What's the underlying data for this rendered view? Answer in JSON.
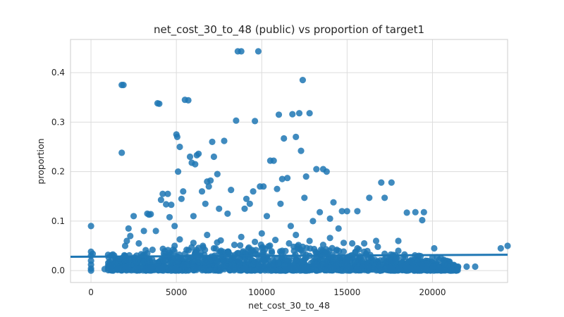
{
  "chart_data": {
    "type": "scatter",
    "title": "net_cost_30_to_48 (public) vs proportion of target1",
    "xlabel": "net_cost_30_to_48",
    "ylabel": "proportion",
    "xlim": [
      -1200,
      24400
    ],
    "ylim": [
      -0.024,
      0.467
    ],
    "x_ticks": [
      0,
      5000,
      10000,
      15000,
      20000
    ],
    "y_ticks": [
      0.0,
      0.1,
      0.2,
      0.3,
      0.4
    ],
    "x_tick_labels": [
      "0",
      "5000",
      "10000",
      "15000",
      "20000"
    ],
    "y_tick_labels": [
      "0.0",
      "0.1",
      "0.2",
      "0.3",
      "0.4"
    ],
    "grid": true,
    "colors": {
      "point": "#1f77b4",
      "grid": "#dcdcdc",
      "frame": "#cccccc",
      "text": "#262626"
    },
    "regression_line": {
      "x": [
        -1200,
        24400
      ],
      "y": [
        0.028,
        0.032
      ]
    },
    "series": [
      {
        "points": [
          [
            0,
            0.09
          ],
          [
            0,
            0.038
          ],
          [
            0,
            0.03
          ],
          [
            0,
            0.02
          ],
          [
            0,
            0.012
          ],
          [
            0,
            0.004
          ],
          [
            0,
            0.0
          ],
          [
            100,
            0.034
          ],
          [
            800,
            0.003
          ],
          [
            1000,
            0.032
          ],
          [
            1100,
            0.005
          ],
          [
            1500,
            0.02
          ],
          [
            1800,
            0.375
          ],
          [
            1900,
            0.375
          ],
          [
            1800,
            0.238
          ],
          [
            2000,
            0.05
          ],
          [
            2100,
            0.06
          ],
          [
            2200,
            0.085
          ],
          [
            2300,
            0.07
          ],
          [
            2500,
            0.11
          ],
          [
            2800,
            0.055
          ],
          [
            3100,
            0.08
          ],
          [
            3300,
            0.115
          ],
          [
            3400,
            0.113
          ],
          [
            3500,
            0.114
          ],
          [
            3800,
            0.08
          ],
          [
            3900,
            0.338
          ],
          [
            4000,
            0.337
          ],
          [
            4100,
            0.143
          ],
          [
            4200,
            0.155
          ],
          [
            4400,
            0.134
          ],
          [
            4500,
            0.155
          ],
          [
            4600,
            0.108
          ],
          [
            4700,
            0.133
          ],
          [
            4900,
            0.09
          ],
          [
            5000,
            0.275
          ],
          [
            5050,
            0.27
          ],
          [
            5100,
            0.2
          ],
          [
            5200,
            0.25
          ],
          [
            5300,
            0.145
          ],
          [
            5400,
            0.16
          ],
          [
            5500,
            0.345
          ],
          [
            5700,
            0.344
          ],
          [
            5800,
            0.23
          ],
          [
            5900,
            0.218
          ],
          [
            6000,
            0.11
          ],
          [
            6100,
            0.215
          ],
          [
            6200,
            0.233
          ],
          [
            6300,
            0.236
          ],
          [
            6500,
            0.16
          ],
          [
            6700,
            0.135
          ],
          [
            6800,
            0.18
          ],
          [
            6900,
            0.17
          ],
          [
            7000,
            0.182
          ],
          [
            7100,
            0.26
          ],
          [
            7200,
            0.23
          ],
          [
            7400,
            0.195
          ],
          [
            7500,
            0.125
          ],
          [
            7800,
            0.262
          ],
          [
            8000,
            0.115
          ],
          [
            8200,
            0.163
          ],
          [
            8500,
            0.303
          ],
          [
            8600,
            0.443
          ],
          [
            8800,
            0.443
          ],
          [
            9000,
            0.125
          ],
          [
            9100,
            0.145
          ],
          [
            9300,
            0.135
          ],
          [
            9500,
            0.16
          ],
          [
            9600,
            0.302
          ],
          [
            9800,
            0.443
          ],
          [
            9900,
            0.17
          ],
          [
            10100,
            0.17
          ],
          [
            10300,
            0.11
          ],
          [
            10500,
            0.222
          ],
          [
            10700,
            0.222
          ],
          [
            10900,
            0.165
          ],
          [
            11000,
            0.315
          ],
          [
            11100,
            0.135
          ],
          [
            11200,
            0.185
          ],
          [
            11300,
            0.267
          ],
          [
            11500,
            0.187
          ],
          [
            11700,
            0.09
          ],
          [
            11800,
            0.316
          ],
          [
            12000,
            0.27
          ],
          [
            12200,
            0.318
          ],
          [
            12300,
            0.242
          ],
          [
            12400,
            0.385
          ],
          [
            12500,
            0.147
          ],
          [
            12600,
            0.19
          ],
          [
            12800,
            0.318
          ],
          [
            13000,
            0.1
          ],
          [
            13200,
            0.205
          ],
          [
            13400,
            0.118
          ],
          [
            13600,
            0.205
          ],
          [
            13800,
            0.2
          ],
          [
            14000,
            0.105
          ],
          [
            14200,
            0.138
          ],
          [
            14500,
            0.085
          ],
          [
            14700,
            0.12
          ],
          [
            15000,
            0.12
          ],
          [
            15300,
            0.055
          ],
          [
            15600,
            0.12
          ],
          [
            16000,
            0.055
          ],
          [
            16300,
            0.147
          ],
          [
            16700,
            0.06
          ],
          [
            17000,
            0.178
          ],
          [
            17200,
            0.147
          ],
          [
            17600,
            0.178
          ],
          [
            18000,
            0.06
          ],
          [
            18500,
            0.117
          ],
          [
            19000,
            0.118
          ],
          [
            19400,
            0.102
          ],
          [
            19500,
            0.118
          ],
          [
            20100,
            0.045
          ],
          [
            20500,
            0.025
          ],
          [
            21000,
            0.018
          ],
          [
            21500,
            0.008
          ],
          [
            22000,
            0.008
          ],
          [
            22500,
            0.008
          ],
          [
            24000,
            0.045
          ],
          [
            24400,
            0.05
          ],
          [
            1200,
            0.012
          ],
          [
            1600,
            0.005
          ],
          [
            2200,
            0.015
          ],
          [
            2600,
            0.022
          ],
          [
            3000,
            0.028
          ],
          [
            3300,
            0.035
          ],
          [
            3600,
            0.042
          ],
          [
            4000,
            0.018
          ],
          [
            4300,
            0.025
          ],
          [
            4600,
            0.036
          ],
          [
            4900,
            0.05
          ],
          [
            5200,
            0.063
          ],
          [
            5600,
            0.042
          ],
          [
            6000,
            0.056
          ],
          [
            6400,
            0.03
          ],
          [
            6800,
            0.072
          ],
          [
            7200,
            0.045
          ],
          [
            7600,
            0.061
          ],
          [
            8000,
            0.038
          ],
          [
            8400,
            0.052
          ],
          [
            8800,
            0.068
          ],
          [
            9200,
            0.044
          ],
          [
            9600,
            0.058
          ],
          [
            10000,
            0.075
          ],
          [
            10400,
            0.049
          ],
          [
            10800,
            0.062
          ],
          [
            11200,
            0.04
          ],
          [
            11600,
            0.055
          ],
          [
            12000,
            0.072
          ],
          [
            12400,
            0.048
          ],
          [
            12800,
            0.06
          ],
          [
            13200,
            0.035
          ],
          [
            13600,
            0.052
          ],
          [
            14000,
            0.066
          ],
          [
            14400,
            0.042
          ],
          [
            14800,
            0.056
          ],
          [
            15200,
            0.03
          ],
          [
            15600,
            0.045
          ],
          [
            16000,
            0.038
          ],
          [
            16400,
            0.026
          ],
          [
            16800,
            0.048
          ],
          [
            17200,
            0.034
          ],
          [
            17600,
            0.022
          ],
          [
            18000,
            0.04
          ],
          [
            18400,
            0.028
          ],
          [
            18800,
            0.016
          ],
          [
            19200,
            0.03
          ],
          [
            19600,
            0.02
          ],
          [
            20000,
            0.012
          ]
        ]
      }
    ]
  }
}
